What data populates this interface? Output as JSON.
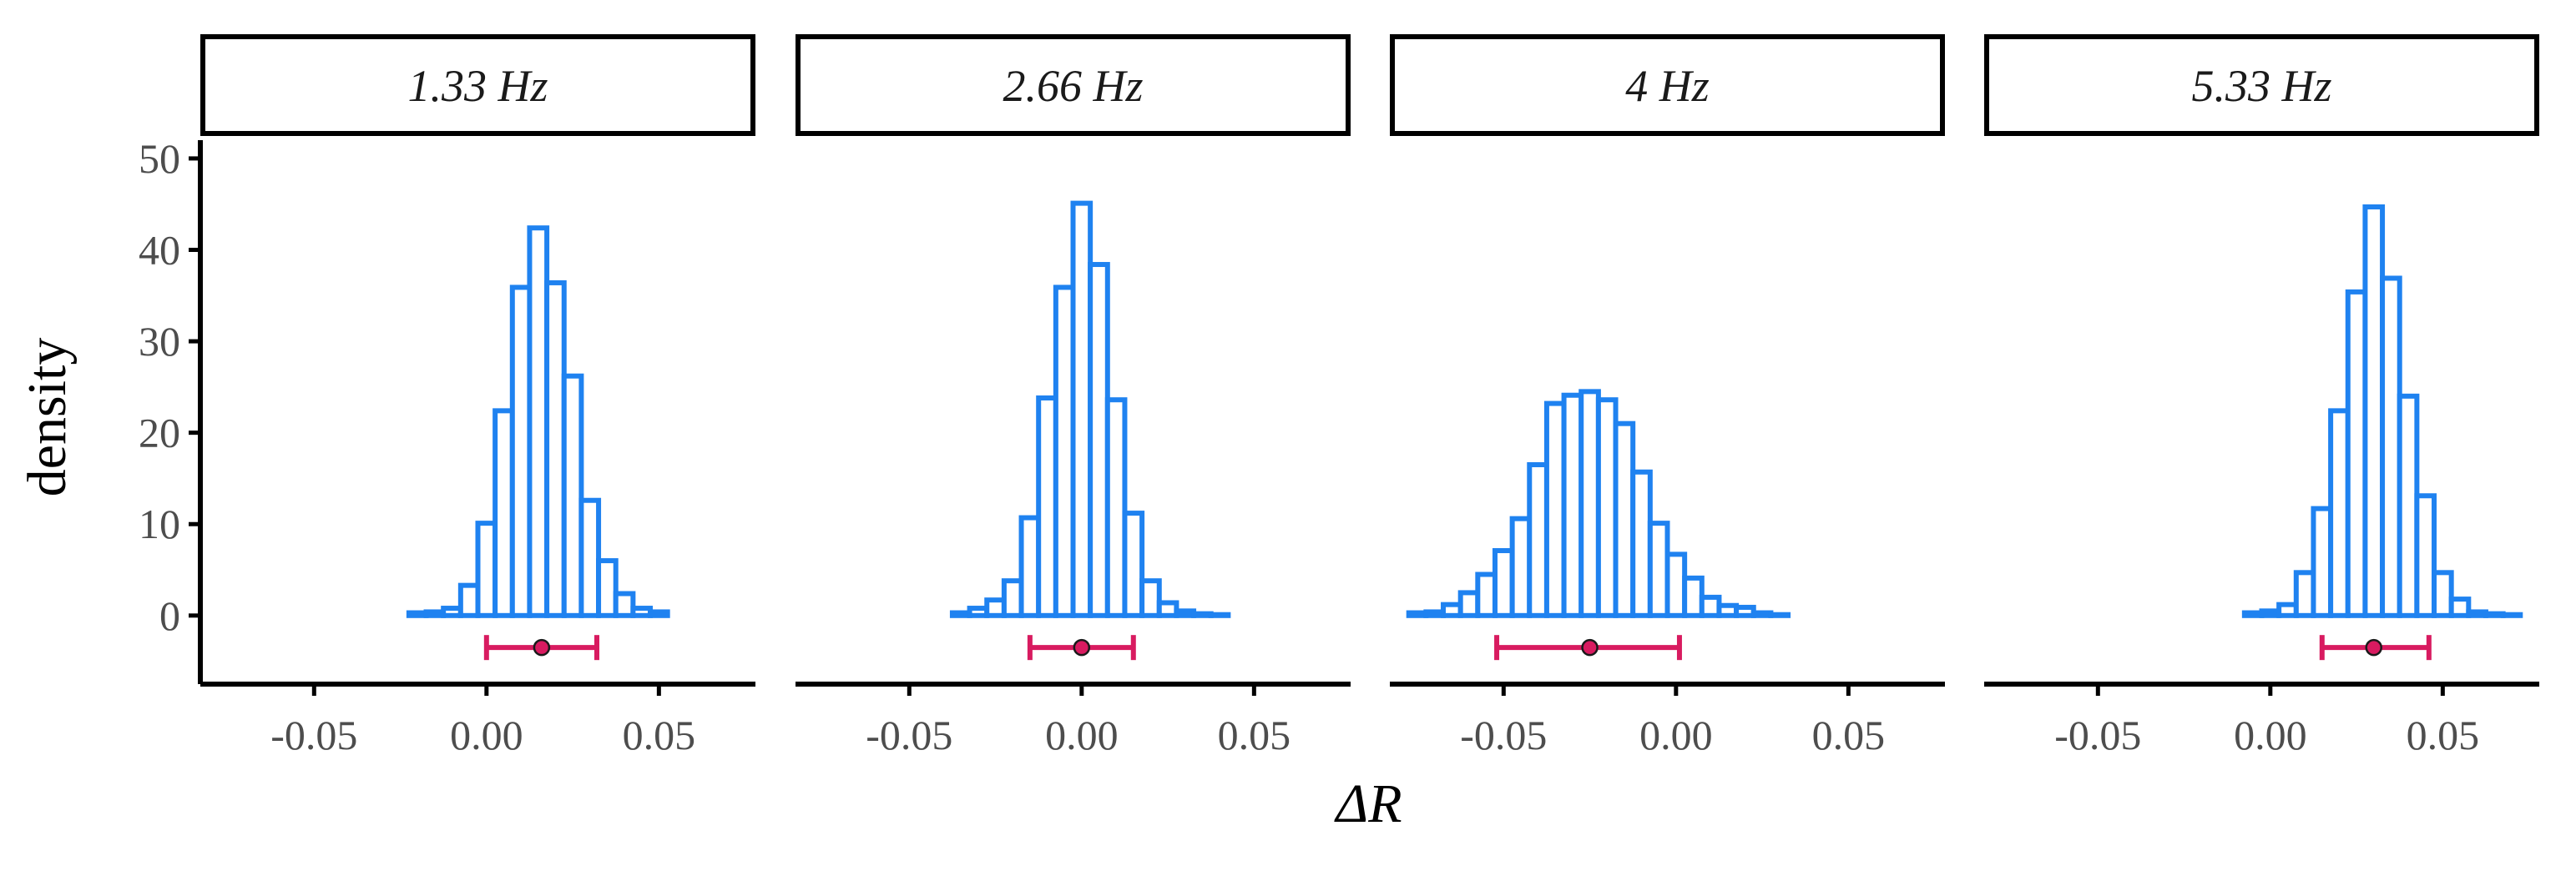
{
  "chart_data": {
    "type": "histogram-facets",
    "xlabel": "ΔR",
    "ylabel": "density",
    "xlim": [
      -0.083,
      0.078
    ],
    "ylim": [
      -7.5,
      52
    ],
    "x_ticks": [
      -0.05,
      0.0,
      0.05
    ],
    "x_tick_labels": [
      "-0.05",
      "0.00",
      "0.05"
    ],
    "y_ticks": [
      0,
      10,
      20,
      30,
      40,
      50
    ],
    "y_tick_labels": [
      "0",
      "10",
      "20",
      "30",
      "40",
      "50"
    ],
    "bin_width": 0.005,
    "colors": {
      "histogram": "#1f82f0",
      "histogram_fill": "#ffffff",
      "interval": "#d81b60",
      "point_fill": "#d81b60",
      "point_stroke": "#1a1a1a",
      "axis": "#000000"
    },
    "interval_y": -3.5,
    "panels": [
      {
        "label": "1.33 Hz",
        "bins_start": -0.0225,
        "densities": [
          0.3,
          0.4,
          0.8,
          3.3,
          10.1,
          22.4,
          35.9,
          42.4,
          36.4,
          26.2,
          12.6,
          6.0,
          2.4,
          0.8,
          0.4
        ],
        "point": 0.016,
        "interval": [
          0.0,
          0.032
        ]
      },
      {
        "label": "2.66 Hz",
        "bins_start": -0.0375,
        "densities": [
          0.3,
          0.8,
          1.7,
          3.8,
          10.7,
          23.8,
          35.9,
          45.1,
          38.4,
          23.6,
          11.2,
          3.8,
          1.4,
          0.5,
          0.2,
          0.1
        ],
        "point": 0.0,
        "interval": [
          -0.015,
          0.015
        ]
      },
      {
        "label": "4 Hz",
        "bins_start": -0.0775,
        "densities": [
          0.3,
          0.4,
          1.2,
          2.5,
          4.5,
          7.1,
          10.6,
          16.5,
          23.2,
          24.1,
          24.5,
          23.6,
          21.0,
          15.7,
          10.1,
          6.7,
          4.1,
          2.0,
          1.1,
          0.9,
          0.3,
          0.1
        ],
        "point": -0.025,
        "interval": [
          -0.052,
          0.001
        ]
      },
      {
        "label": "5.33 Hz",
        "bins_start": -0.0075,
        "densities": [
          0.3,
          0.5,
          1.2,
          4.7,
          11.7,
          22.4,
          35.4,
          44.7,
          36.9,
          24.0,
          13.1,
          4.7,
          1.8,
          0.4,
          0.2,
          0.1
        ],
        "point": 0.03,
        "interval": [
          0.015,
          0.046
        ]
      }
    ]
  }
}
